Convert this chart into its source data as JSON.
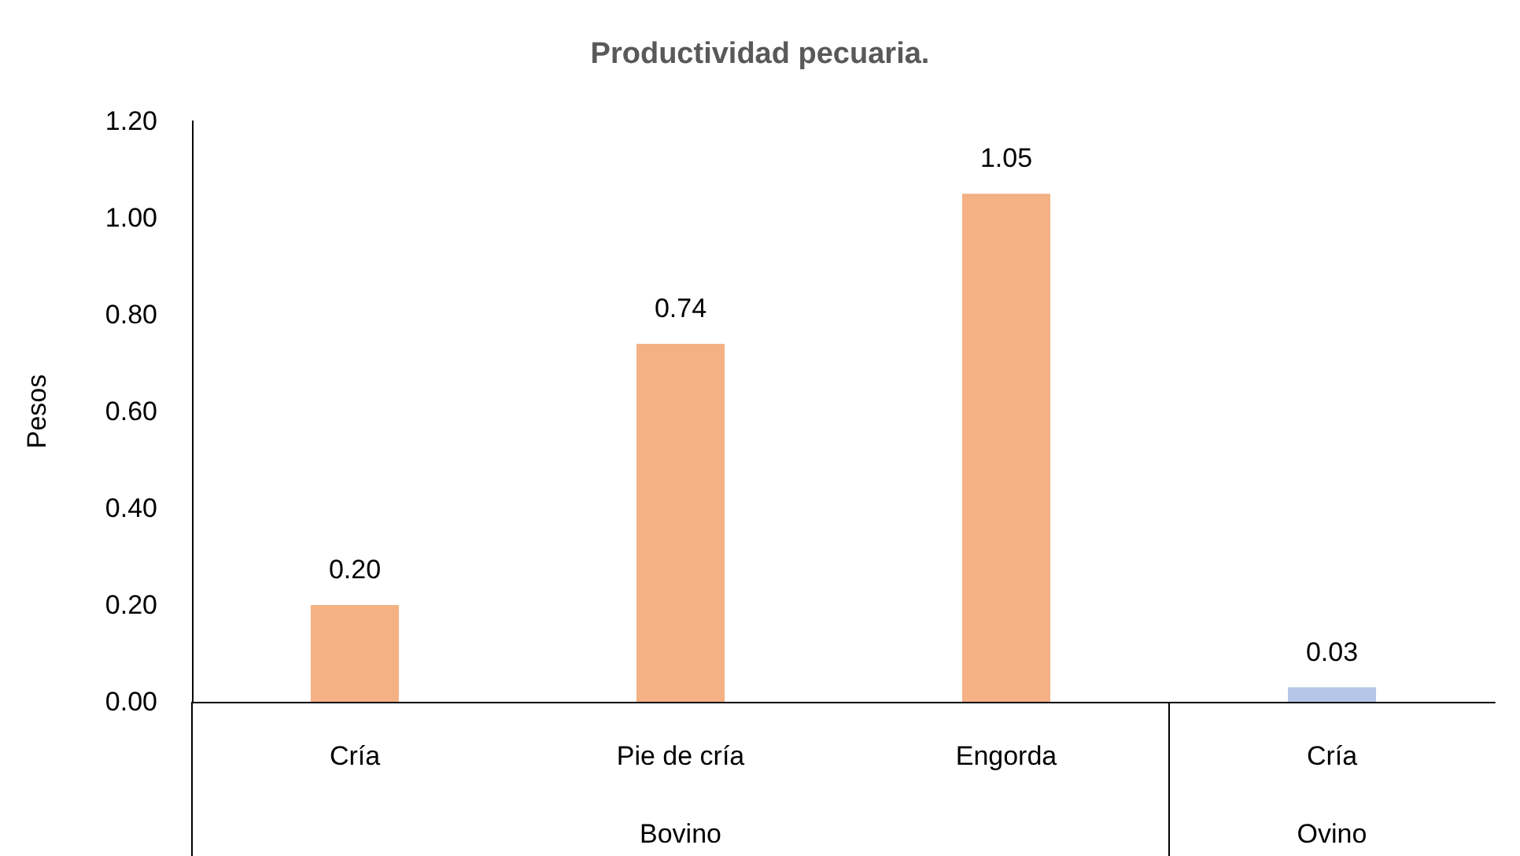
{
  "chart_data": {
    "type": "bar",
    "title": "Productividad pecuaria.",
    "ylabel": "Pesos",
    "categories": [
      "Cría",
      "Pie de cría",
      "Engorda",
      "Cría"
    ],
    "values": [
      0.2,
      0.74,
      1.05,
      0.03
    ],
    "colors": [
      "#f4b183",
      "#f4b183",
      "#f4b183",
      "#b4c7e7"
    ],
    "ylim": [
      0,
      1.2
    ],
    "yticks": [
      {
        "value": 0,
        "label": "0.00"
      },
      {
        "value": 0.2,
        "label": "0.20"
      },
      {
        "value": 0.4,
        "label": "0.40"
      },
      {
        "value": 0.6,
        "label": "0.60"
      },
      {
        "value": 0.8,
        "label": "0.80"
      },
      {
        "value": 1.0,
        "label": "1.00"
      },
      {
        "value": 1.2,
        "label": "1.20"
      }
    ],
    "value_labels": [
      "0.20",
      "0.74",
      "1.05",
      "0.03"
    ],
    "annotations": [
      "Bovino",
      "Ovino"
    ]
  }
}
